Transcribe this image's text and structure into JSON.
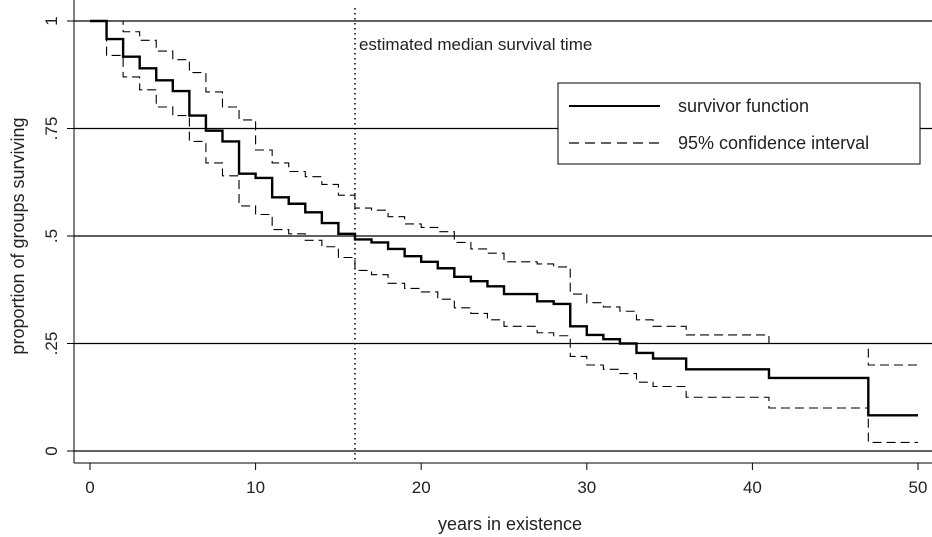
{
  "chart_data": {
    "type": "line",
    "step": true,
    "xlabel": "years in existence",
    "ylabel": "proportion of groups surviving",
    "xlim": [
      0,
      50
    ],
    "ylim": [
      0,
      1
    ],
    "x_ticks": [
      0,
      10,
      20,
      30,
      40,
      50
    ],
    "x_tick_labels": [
      "0",
      "10",
      "20",
      "30",
      "40",
      "50"
    ],
    "y_ticks": [
      0,
      0.25,
      0.5,
      0.75,
      1
    ],
    "y_tick_labels": [
      "0",
      ".25",
      ".5",
      ".75",
      "1"
    ],
    "grid": "horizontal",
    "legend_position": "top-right",
    "annotation": {
      "x": 16,
      "text": "estimated median survival time"
    },
    "series": [
      {
        "name": "survivor function",
        "style": "solid",
        "x": [
          0,
          1,
          2,
          3,
          4,
          5,
          6,
          7,
          8,
          9,
          10,
          11,
          12,
          13,
          14,
          15,
          16,
          17,
          18,
          19,
          20,
          21,
          22,
          23,
          24,
          25,
          26,
          27,
          28,
          29,
          30,
          31,
          32,
          33,
          34,
          36,
          41,
          47,
          50
        ],
        "y": [
          1,
          0.958,
          0.917,
          0.89,
          0.862,
          0.837,
          0.78,
          0.745,
          0.72,
          0.645,
          0.635,
          0.59,
          0.575,
          0.555,
          0.53,
          0.505,
          0.492,
          0.485,
          0.47,
          0.453,
          0.44,
          0.425,
          0.405,
          0.395,
          0.383,
          0.365,
          0.365,
          0.348,
          0.342,
          0.29,
          0.27,
          0.26,
          0.25,
          0.228,
          0.215,
          0.19,
          0.17,
          0.083,
          0.083
        ]
      },
      {
        "name": "95% confidence interval",
        "style": "dashed",
        "x": [
          0,
          1,
          2,
          3,
          4,
          5,
          6,
          7,
          8,
          9,
          10,
          11,
          12,
          13,
          14,
          15,
          16,
          17,
          18,
          19,
          20,
          21,
          22,
          23,
          24,
          25,
          26,
          27,
          28,
          29,
          30,
          31,
          32,
          33,
          34,
          36,
          41,
          47,
          50
        ],
        "y": [
          1,
          1,
          0.975,
          0.955,
          0.93,
          0.91,
          0.88,
          0.835,
          0.8,
          0.77,
          0.7,
          0.67,
          0.65,
          0.638,
          0.62,
          0.595,
          0.565,
          0.56,
          0.545,
          0.528,
          0.52,
          0.51,
          0.485,
          0.47,
          0.46,
          0.44,
          0.44,
          0.435,
          0.428,
          0.365,
          0.345,
          0.335,
          0.325,
          0.305,
          0.29,
          0.27,
          0.25,
          0.2,
          0.2
        ]
      },
      {
        "name": "95% confidence interval (lower)",
        "style": "dashed",
        "x": [
          0,
          1,
          2,
          3,
          4,
          5,
          6,
          7,
          8,
          9,
          10,
          11,
          12,
          13,
          14,
          15,
          16,
          17,
          18,
          19,
          20,
          21,
          22,
          23,
          24,
          25,
          26,
          27,
          28,
          29,
          30,
          31,
          32,
          33,
          34,
          36,
          41,
          47,
          50
        ],
        "y": [
          1,
          0.92,
          0.87,
          0.84,
          0.8,
          0.78,
          0.72,
          0.67,
          0.64,
          0.57,
          0.55,
          0.515,
          0.505,
          0.49,
          0.475,
          0.45,
          0.42,
          0.41,
          0.39,
          0.378,
          0.37,
          0.353,
          0.333,
          0.32,
          0.305,
          0.29,
          0.29,
          0.275,
          0.268,
          0.22,
          0.2,
          0.19,
          0.18,
          0.16,
          0.15,
          0.125,
          0.1,
          0.02,
          0.02
        ]
      }
    ]
  }
}
